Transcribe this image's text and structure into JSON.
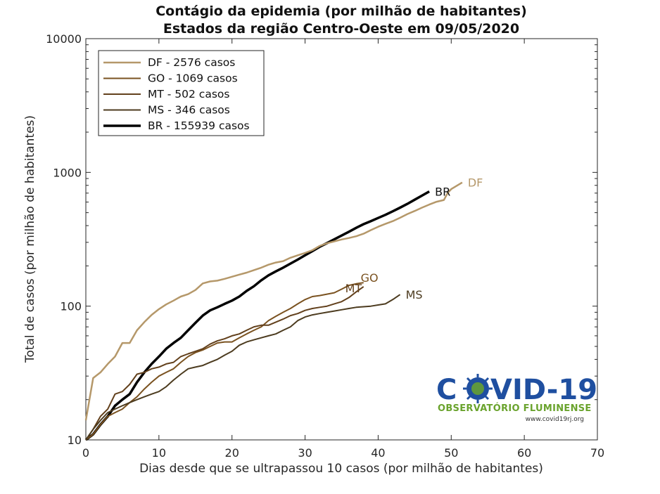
{
  "chart_data": {
    "type": "line",
    "title": "Contágio da epidemia (por milhão de habitantes)",
    "subtitle": "Estados da região Centro-Oeste  em 09/05/2020",
    "xlabel": "Dias desde que se ultrapassou 10 casos (por milhão de habitantes)",
    "ylabel": "Total de casos (por milhão de habitantes)",
    "xlim": [
      0,
      70
    ],
    "ylim": [
      10,
      10000
    ],
    "yscale": "log",
    "x_ticks": [
      0,
      10,
      20,
      30,
      40,
      50,
      60,
      70
    ],
    "y_ticks": [
      10,
      100,
      1000,
      10000
    ],
    "y_tick_labels": [
      "10",
      "100",
      "1000",
      "10000"
    ],
    "grid": false,
    "legend_position": "top-left",
    "series": [
      {
        "name": "DF - 2576 casos",
        "end_label": "DF",
        "color": "#b5986a",
        "width": 2.5,
        "points": [
          [
            0,
            14
          ],
          [
            1,
            29
          ],
          [
            2,
            32
          ],
          [
            3,
            37
          ],
          [
            4,
            42
          ],
          [
            5,
            53
          ],
          [
            6,
            53
          ],
          [
            7,
            66
          ],
          [
            8,
            76
          ],
          [
            9,
            86
          ],
          [
            10,
            95
          ],
          [
            11,
            103
          ],
          [
            12,
            110
          ],
          [
            13,
            118
          ],
          [
            14,
            123
          ],
          [
            15,
            132
          ],
          [
            16,
            148
          ],
          [
            17,
            153
          ],
          [
            18,
            155
          ],
          [
            19,
            160
          ],
          [
            20,
            166
          ],
          [
            21,
            172
          ],
          [
            22,
            178
          ],
          [
            23,
            186
          ],
          [
            24,
            194
          ],
          [
            25,
            204
          ],
          [
            26,
            212
          ],
          [
            27,
            217
          ],
          [
            28,
            230
          ],
          [
            29,
            240
          ],
          [
            30,
            250
          ],
          [
            31,
            262
          ],
          [
            32,
            282
          ],
          [
            33,
            295
          ],
          [
            34,
            305
          ],
          [
            35,
            315
          ],
          [
            36,
            323
          ],
          [
            37,
            333
          ],
          [
            38,
            348
          ],
          [
            39,
            370
          ],
          [
            40,
            392
          ],
          [
            41,
            412
          ],
          [
            42,
            432
          ],
          [
            43,
            458
          ],
          [
            44,
            488
          ],
          [
            45,
            515
          ],
          [
            46,
            545
          ],
          [
            47,
            575
          ],
          [
            48,
            603
          ],
          [
            49,
            622
          ],
          [
            49.5,
            700
          ],
          [
            50,
            750
          ],
          [
            51,
            810
          ],
          [
            51.5,
            840
          ]
        ]
      },
      {
        "name": "GO - 1069 casos",
        "end_label": "GO",
        "color": "#7a5220",
        "width": 2,
        "points": [
          [
            0,
            10
          ],
          [
            1,
            11
          ],
          [
            2,
            13
          ],
          [
            3,
            15
          ],
          [
            4,
            16
          ],
          [
            5,
            17
          ],
          [
            6,
            19
          ],
          [
            7,
            21
          ],
          [
            8,
            24
          ],
          [
            9,
            27
          ],
          [
            10,
            30
          ],
          [
            11,
            32
          ],
          [
            12,
            34
          ],
          [
            13,
            38
          ],
          [
            14,
            42
          ],
          [
            15,
            45
          ],
          [
            16,
            47
          ],
          [
            17,
            50
          ],
          [
            18,
            53
          ],
          [
            19,
            54
          ],
          [
            20,
            54
          ],
          [
            21,
            58
          ],
          [
            22,
            62
          ],
          [
            23,
            66
          ],
          [
            24,
            70
          ],
          [
            25,
            78
          ],
          [
            26,
            84
          ],
          [
            27,
            90
          ],
          [
            28,
            96
          ],
          [
            29,
            104
          ],
          [
            30,
            112
          ],
          [
            31,
            118
          ],
          [
            32,
            120
          ],
          [
            33,
            123
          ],
          [
            34,
            126
          ],
          [
            35,
            134
          ],
          [
            36,
            143
          ],
          [
            37,
            147
          ],
          [
            38,
            150
          ]
        ]
      },
      {
        "name": "MT - 502 casos",
        "end_label": "MT",
        "color": "#62401c",
        "width": 2,
        "points": [
          [
            0,
            10
          ],
          [
            1,
            12
          ],
          [
            2,
            15
          ],
          [
            3,
            17
          ],
          [
            4,
            22
          ],
          [
            5,
            23
          ],
          [
            6,
            26
          ],
          [
            7,
            31
          ],
          [
            8,
            32
          ],
          [
            9,
            34
          ],
          [
            10,
            35
          ],
          [
            11,
            37
          ],
          [
            12,
            38
          ],
          [
            13,
            42
          ],
          [
            14,
            44
          ],
          [
            15,
            46
          ],
          [
            16,
            48
          ],
          [
            17,
            52
          ],
          [
            18,
            55
          ],
          [
            19,
            57
          ],
          [
            20,
            60
          ],
          [
            21,
            62
          ],
          [
            22,
            66
          ],
          [
            23,
            70
          ],
          [
            24,
            72
          ],
          [
            25,
            72
          ],
          [
            26,
            76
          ],
          [
            27,
            80
          ],
          [
            28,
            85
          ],
          [
            29,
            88
          ],
          [
            30,
            93
          ],
          [
            31,
            96
          ],
          [
            32,
            98
          ],
          [
            33,
            100
          ],
          [
            34,
            104
          ],
          [
            35,
            108
          ],
          [
            36,
            116
          ],
          [
            37,
            128
          ],
          [
            38,
            140
          ]
        ]
      },
      {
        "name": "MS - 346 casos",
        "end_label": "MS",
        "color": "#4c3b1f",
        "width": 2,
        "points": [
          [
            0,
            10
          ],
          [
            1,
            12
          ],
          [
            2,
            14
          ],
          [
            3,
            16
          ],
          [
            4,
            17
          ],
          [
            5,
            18
          ],
          [
            6,
            19
          ],
          [
            7,
            20
          ],
          [
            8,
            21
          ],
          [
            9,
            22
          ],
          [
            10,
            23
          ],
          [
            11,
            25
          ],
          [
            12,
            28
          ],
          [
            13,
            31
          ],
          [
            14,
            34
          ],
          [
            15,
            35
          ],
          [
            16,
            36
          ],
          [
            17,
            38
          ],
          [
            18,
            40
          ],
          [
            19,
            43
          ],
          [
            20,
            46
          ],
          [
            21,
            51
          ],
          [
            22,
            54
          ],
          [
            23,
            56
          ],
          [
            24,
            58
          ],
          [
            25,
            60
          ],
          [
            26,
            62
          ],
          [
            27,
            66
          ],
          [
            28,
            70
          ],
          [
            29,
            78
          ],
          [
            30,
            83
          ],
          [
            31,
            86
          ],
          [
            32,
            88
          ],
          [
            33,
            90
          ],
          [
            34,
            92
          ],
          [
            35,
            94
          ],
          [
            36,
            96
          ],
          [
            37,
            98
          ],
          [
            38,
            99
          ],
          [
            39,
            100
          ],
          [
            40,
            102
          ],
          [
            41,
            104
          ],
          [
            42,
            112
          ],
          [
            43,
            122
          ]
        ]
      },
      {
        "name": "BR - 155939 casos",
        "end_label": "BR",
        "color": "#000000",
        "width": 3.5,
        "points": [
          [
            0,
            10
          ],
          [
            1,
            11
          ],
          [
            2,
            13
          ],
          [
            3,
            15
          ],
          [
            4,
            18
          ],
          [
            5,
            20
          ],
          [
            6,
            22
          ],
          [
            7,
            27
          ],
          [
            8,
            32
          ],
          [
            9,
            37
          ],
          [
            10,
            42
          ],
          [
            11,
            48
          ],
          [
            12,
            53
          ],
          [
            13,
            58
          ],
          [
            14,
            66
          ],
          [
            15,
            75
          ],
          [
            16,
            85
          ],
          [
            17,
            93
          ],
          [
            18,
            98
          ],
          [
            19,
            104
          ],
          [
            20,
            110
          ],
          [
            21,
            118
          ],
          [
            22,
            130
          ],
          [
            23,
            141
          ],
          [
            24,
            156
          ],
          [
            25,
            170
          ],
          [
            26,
            182
          ],
          [
            27,
            194
          ],
          [
            28,
            208
          ],
          [
            29,
            223
          ],
          [
            30,
            240
          ],
          [
            31,
            258
          ],
          [
            32,
            278
          ],
          [
            33,
            296
          ],
          [
            34,
            316
          ],
          [
            35,
            337
          ],
          [
            36,
            360
          ],
          [
            37,
            385
          ],
          [
            38,
            410
          ],
          [
            39,
            432
          ],
          [
            40,
            456
          ],
          [
            41,
            482
          ],
          [
            42,
            512
          ],
          [
            43,
            545
          ],
          [
            44,
            582
          ],
          [
            45,
            625
          ],
          [
            46,
            670
          ],
          [
            47,
            720
          ]
        ]
      }
    ]
  },
  "logo": {
    "word_a": "C",
    "word_b": "VID-19",
    "subtitle": "OBSERVATÓRIO FLUMINENSE",
    "url": "www.covid19rj.org",
    "color_primary": "#1f4fa0",
    "color_secondary": "#6aa32d"
  }
}
